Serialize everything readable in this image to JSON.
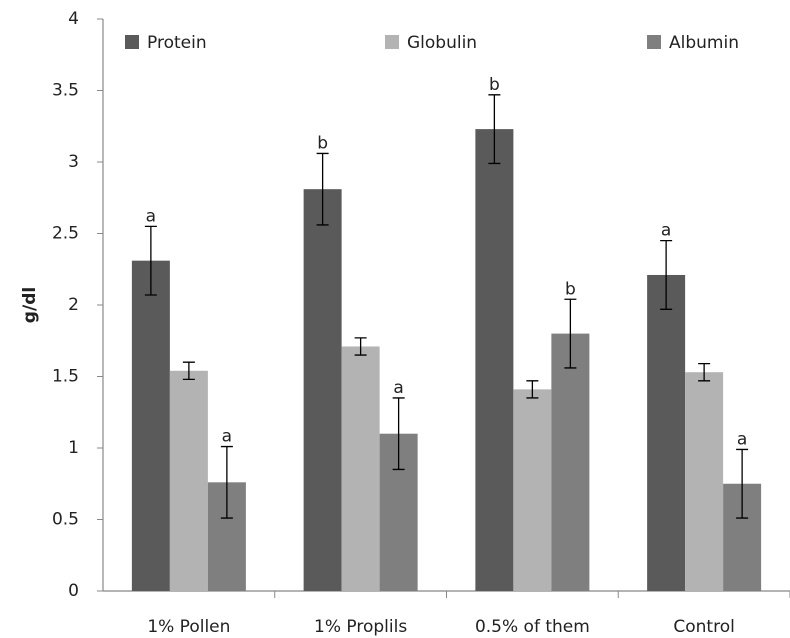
{
  "chart_data": {
    "type": "bar",
    "y_label": "g/dl",
    "categories": [
      "1% Pollen",
      "1% Proplils",
      "0.5% of them",
      "Control"
    ],
    "series": [
      {
        "name": "Protein",
        "color": "#5a5a5a",
        "values": [
          2.31,
          2.81,
          3.23,
          2.21
        ],
        "errors": [
          0.24,
          0.25,
          0.24,
          0.24
        ],
        "labels": [
          "a",
          "b",
          "b",
          "a"
        ]
      },
      {
        "name": "Globulin",
        "color": "#b3b3b3",
        "values": [
          1.54,
          1.71,
          1.41,
          1.53
        ],
        "errors": [
          0.06,
          0.06,
          0.06,
          0.06
        ]
      },
      {
        "name": "Albumin",
        "color": "#7f7f7f",
        "values": [
          0.76,
          1.1,
          1.8,
          0.75
        ],
        "errors": [
          0.25,
          0.25,
          0.24,
          0.24
        ],
        "labels": [
          "a",
          "a",
          "b",
          "a"
        ]
      }
    ],
    "ylim": [
      0,
      4
    ],
    "yticks": [
      0,
      0.5,
      1,
      1.5,
      2,
      2.5,
      3,
      3.5,
      4
    ],
    "grid": false,
    "legend": "top"
  }
}
